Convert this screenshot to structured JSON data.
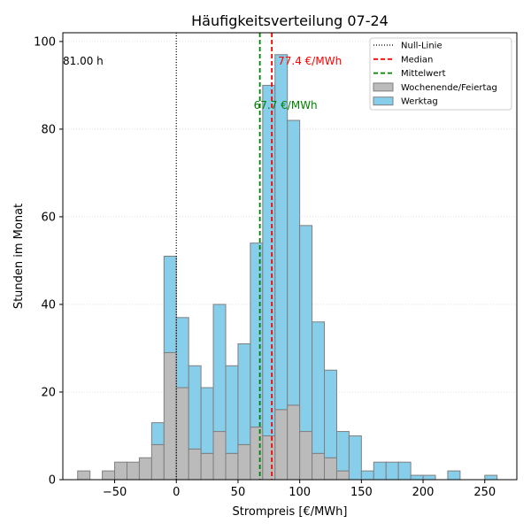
{
  "chart_data": {
    "type": "bar",
    "title": "Häufigkeitsverteilung 07-24",
    "xlabel": "Strompreis [€/MWh]",
    "ylabel": "Stunden im Monat",
    "xlim": [
      -92,
      276
    ],
    "ylim": [
      0,
      102
    ],
    "xticks": [
      -50,
      0,
      50,
      100,
      150,
      200,
      250
    ],
    "yticks": [
      0,
      20,
      40,
      60,
      80,
      100
    ],
    "grid": "horizontal-dotted",
    "bin_width": 10,
    "stacked": true,
    "bin_centers": [
      -75,
      -55,
      -45,
      -35,
      -25,
      -15,
      -5,
      5,
      15,
      25,
      35,
      45,
      55,
      65,
      75,
      85,
      95,
      105,
      115,
      125,
      135,
      145,
      155,
      165,
      175,
      185,
      195,
      205,
      225,
      255
    ],
    "series": [
      {
        "name": "Wochenende/Feiertag",
        "color": "#bbbbbb",
        "values": [
          2,
          2,
          4,
          4,
          5,
          8,
          29,
          21,
          7,
          6,
          11,
          6,
          8,
          12,
          10,
          16,
          17,
          11,
          6,
          5,
          2,
          0,
          0,
          0,
          0,
          0,
          0,
          0,
          0,
          0
        ]
      },
      {
        "name": "Werktag",
        "color": "#87ceeb",
        "values": [
          0,
          0,
          0,
          0,
          0,
          5,
          22,
          16,
          19,
          15,
          29,
          20,
          23,
          42,
          80,
          81,
          65,
          47,
          30,
          20,
          9,
          10,
          2,
          4,
          4,
          4,
          1,
          1,
          2,
          1
        ]
      }
    ],
    "reference_lines": [
      {
        "name": "Null-Linie",
        "x": 0,
        "color": "#000000",
        "style": "dotted"
      },
      {
        "name": "Median",
        "x": 77.4,
        "color": "#ff0000",
        "style": "dashed",
        "label": "77.4 €/MWh"
      },
      {
        "name": "Mittelwert",
        "x": 67.7,
        "color": "#008000",
        "style": "dashed",
        "label": "67.7 €/MWh"
      }
    ],
    "annotation": "81.00 h",
    "legend": {
      "position": "top-right",
      "entries": [
        "Null-Linie",
        "Median",
        "Mittelwert",
        "Wochenende/Feiertag",
        "Werktag"
      ]
    }
  }
}
